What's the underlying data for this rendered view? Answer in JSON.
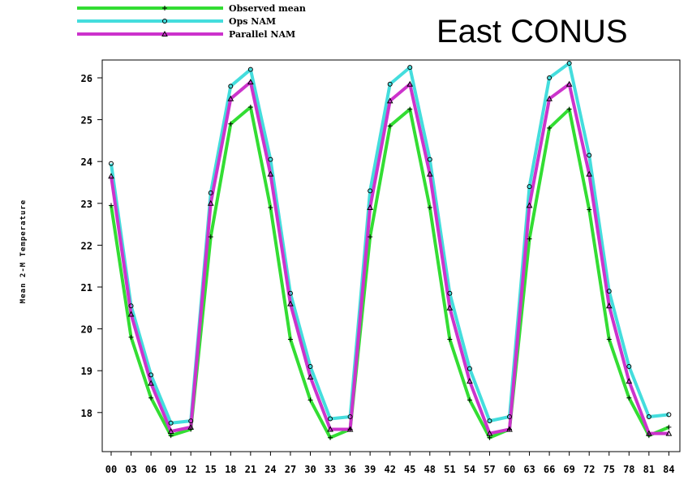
{
  "chart_data": {
    "type": "line",
    "title": "East CONUS",
    "xlabel": "",
    "ylabel": "Mean 2-M Temperature",
    "ylim": [
      17.2,
      26.6
    ],
    "yticks": [
      18,
      19,
      20,
      21,
      22,
      23,
      24,
      25,
      26
    ],
    "categories": [
      "00",
      "03",
      "06",
      "09",
      "12",
      "15",
      "18",
      "21",
      "24",
      "27",
      "30",
      "33",
      "36",
      "39",
      "42",
      "45",
      "48",
      "51",
      "54",
      "57",
      "60",
      "63",
      "66",
      "69",
      "72",
      "75",
      "78",
      "81",
      "84"
    ],
    "grid": false,
    "legend_position": "top-left",
    "series": [
      {
        "name": "Observed mean",
        "color": "#33dd33",
        "marker": "plus",
        "values": [
          22.95,
          19.8,
          18.35,
          17.45,
          17.6,
          22.2,
          24.9,
          25.3,
          22.9,
          19.75,
          18.3,
          17.4,
          17.6,
          22.2,
          24.85,
          25.25,
          22.9,
          19.75,
          18.3,
          17.4,
          17.6,
          22.15,
          24.8,
          25.25,
          22.85,
          19.75,
          18.35,
          17.45,
          17.65
        ]
      },
      {
        "name": "Ops NAM",
        "color": "#44dddd",
        "marker": "circle",
        "values": [
          23.95,
          20.55,
          18.9,
          17.75,
          17.8,
          23.25,
          25.8,
          26.2,
          24.05,
          20.85,
          19.1,
          17.85,
          17.9,
          23.3,
          25.85,
          26.25,
          24.05,
          20.85,
          19.05,
          17.8,
          17.9,
          23.4,
          26.0,
          26.35,
          24.15,
          20.9,
          19.1,
          17.9,
          17.95
        ]
      },
      {
        "name": "Parallel NAM",
        "color": "#cc33cc",
        "marker": "triangle",
        "values": [
          23.65,
          20.35,
          18.7,
          17.55,
          17.65,
          23.0,
          25.5,
          25.9,
          23.7,
          20.6,
          18.85,
          17.6,
          17.6,
          22.9,
          25.45,
          25.85,
          23.7,
          20.5,
          18.75,
          17.5,
          17.6,
          22.95,
          25.5,
          25.85,
          23.7,
          20.55,
          18.75,
          17.5,
          17.5
        ]
      }
    ]
  }
}
